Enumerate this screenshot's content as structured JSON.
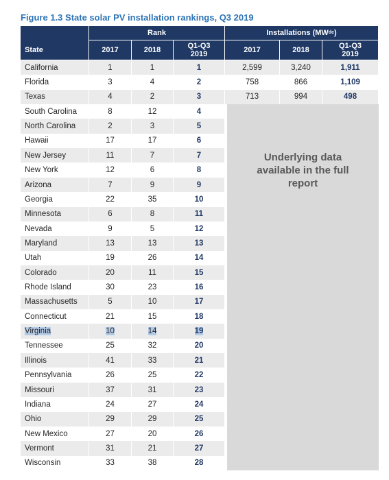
{
  "title": "Figure 1.3 State solar PV installation rankings, Q3 2019",
  "header": {
    "state": "State",
    "rank": "Rank",
    "installations": {
      "text": "Installations (MW",
      "sub": "dc",
      "suffix": ")"
    },
    "rank_years": [
      "2017",
      "2018",
      "Q1-Q3 2019"
    ],
    "installation_years": [
      "2017",
      "2018",
      "Q1-Q3 2019"
    ]
  },
  "rows": [
    [
      "California",
      "1",
      "1",
      "1",
      "2,599",
      "3,240",
      "1,911"
    ],
    [
      "Florida",
      "3",
      "4",
      "2",
      "758",
      "866",
      "1,109"
    ],
    [
      "Texas",
      "4",
      "2",
      "3",
      "713",
      "994",
      "498"
    ],
    [
      "South Carolina",
      "8",
      "12",
      "4"
    ],
    [
      "North Carolina",
      "2",
      "3",
      "5"
    ],
    [
      "Hawaii",
      "17",
      "17",
      "6"
    ],
    [
      "New Jersey",
      "11",
      "7",
      "7"
    ],
    [
      "New York",
      "12",
      "6",
      "8"
    ],
    [
      "Arizona",
      "7",
      "9",
      "9"
    ],
    [
      "Georgia",
      "22",
      "35",
      "10"
    ],
    [
      "Minnesota",
      "6",
      "8",
      "11"
    ],
    [
      "Nevada",
      "9",
      "5",
      "12"
    ],
    [
      "Maryland",
      "13",
      "13",
      "13"
    ],
    [
      "Utah",
      "19",
      "26",
      "14"
    ],
    [
      "Colorado",
      "20",
      "11",
      "15"
    ],
    [
      "Rhode Island",
      "30",
      "23",
      "16"
    ],
    [
      "Massachusetts",
      "5",
      "10",
      "17"
    ],
    [
      "Connecticut",
      "21",
      "15",
      "18"
    ],
    [
      "Virginia",
      "10",
      "14",
      "19"
    ],
    [
      "Tennessee",
      "25",
      "32",
      "20"
    ],
    [
      "Illinois",
      "41",
      "33",
      "21"
    ],
    [
      "Pennsylvania",
      "26",
      "25",
      "22"
    ],
    [
      "Missouri",
      "37",
      "31",
      "23"
    ],
    [
      "Indiana",
      "24",
      "27",
      "24"
    ],
    [
      "Ohio",
      "29",
      "29",
      "25"
    ],
    [
      "New Mexico",
      "27",
      "20",
      "26"
    ],
    [
      "Vermont",
      "31",
      "21",
      "27"
    ],
    [
      "Wisconsin",
      "33",
      "38",
      "28"
    ]
  ],
  "note": "Underlying data available in the full report",
  "selected_row": 18
}
